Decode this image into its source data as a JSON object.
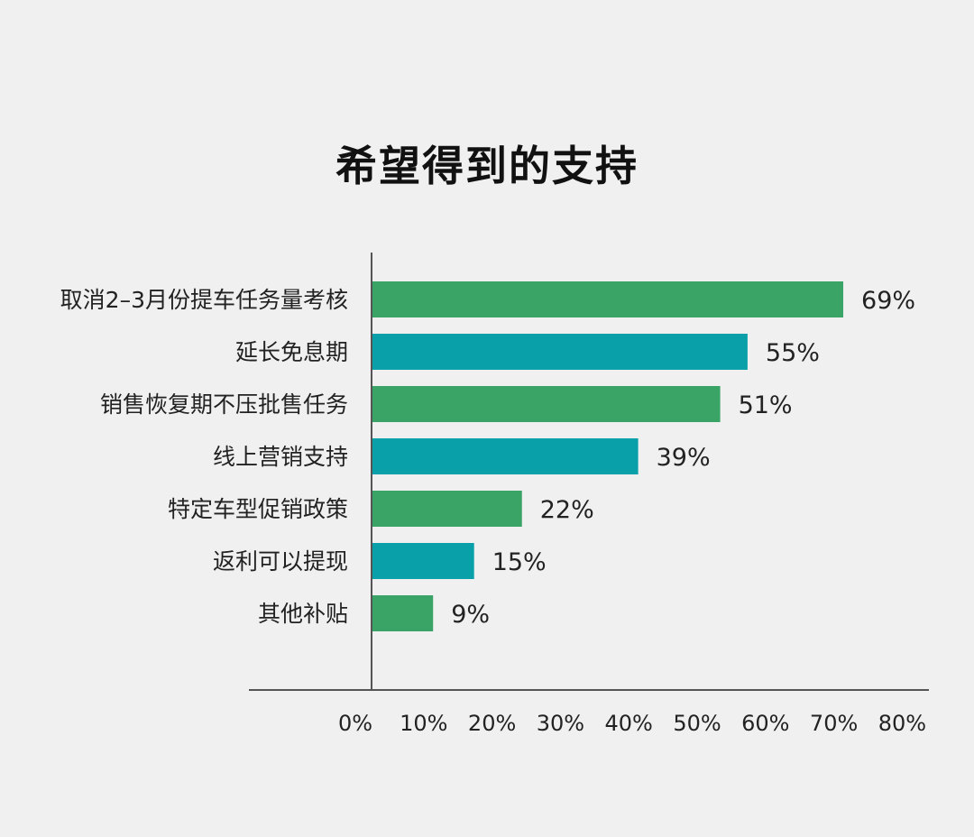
{
  "chart_data": {
    "type": "bar",
    "orientation": "horizontal",
    "title": "希望得到的支持",
    "categories": [
      "取消2–3月份提车任务量考核",
      "延长免息期",
      "销售恢复期不压批售任务",
      "线上营销支持",
      "特定车型促销政策",
      "返利可以提现",
      "其他补贴"
    ],
    "values": [
      69,
      55,
      51,
      39,
      22,
      15,
      9
    ],
    "value_labels": [
      "69%",
      "55%",
      "51%",
      "39%",
      "22%",
      "15%",
      "9%"
    ],
    "bar_colors": [
      "#3aa366",
      "#0aa0aa",
      "#3aa366",
      "#0aa0aa",
      "#3aa366",
      "#0aa0aa",
      "#3aa366"
    ],
    "xlim": [
      0,
      80
    ],
    "x_ticks": [
      0,
      10,
      20,
      30,
      40,
      50,
      60,
      70,
      80
    ],
    "x_tick_labels": [
      "0%",
      "10%",
      "20%",
      "30%",
      "40%",
      "50%",
      "60%",
      "70%",
      "80%"
    ],
    "xlabel": "",
    "ylabel": "",
    "grid": false,
    "legend": "none",
    "colors": {
      "background": "#f0f0f0",
      "green": "#3aa366",
      "teal": "#0aa0aa",
      "axis": "#555555"
    }
  }
}
